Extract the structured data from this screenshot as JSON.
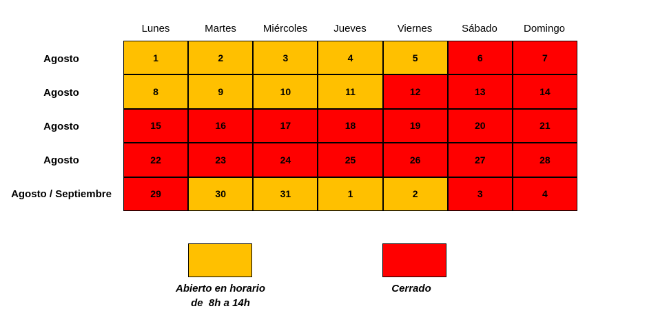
{
  "colors": {
    "open": "#ffc000",
    "closed": "#ff0000"
  },
  "days": [
    "Lunes",
    "Martes",
    "Miércoles",
    "Jueves",
    "Viernes",
    "Sábado",
    "Domingo"
  ],
  "rows": [
    {
      "label": "Agosto",
      "cells": [
        {
          "day": "1",
          "status": "open"
        },
        {
          "day": "2",
          "status": "open"
        },
        {
          "day": "3",
          "status": "open"
        },
        {
          "day": "4",
          "status": "open"
        },
        {
          "day": "5",
          "status": "open"
        },
        {
          "day": "6",
          "status": "closed"
        },
        {
          "day": "7",
          "status": "closed"
        }
      ]
    },
    {
      "label": "Agosto",
      "cells": [
        {
          "day": "8",
          "status": "open"
        },
        {
          "day": "9",
          "status": "open"
        },
        {
          "day": "10",
          "status": "open"
        },
        {
          "day": "11",
          "status": "open"
        },
        {
          "day": "12",
          "status": "closed"
        },
        {
          "day": "13",
          "status": "closed"
        },
        {
          "day": "14",
          "status": "closed"
        }
      ]
    },
    {
      "label": "Agosto",
      "cells": [
        {
          "day": "15",
          "status": "closed"
        },
        {
          "day": "16",
          "status": "closed"
        },
        {
          "day": "17",
          "status": "closed"
        },
        {
          "day": "18",
          "status": "closed"
        },
        {
          "day": "19",
          "status": "closed"
        },
        {
          "day": "20",
          "status": "closed"
        },
        {
          "day": "21",
          "status": "closed"
        }
      ]
    },
    {
      "label": "Agosto",
      "cells": [
        {
          "day": "22",
          "status": "closed"
        },
        {
          "day": "23",
          "status": "closed"
        },
        {
          "day": "24",
          "status": "closed"
        },
        {
          "day": "25",
          "status": "closed"
        },
        {
          "day": "26",
          "status": "closed"
        },
        {
          "day": "27",
          "status": "closed"
        },
        {
          "day": "28",
          "status": "closed"
        }
      ]
    },
    {
      "label": "Agosto / Septiembre",
      "cells": [
        {
          "day": "29",
          "status": "closed"
        },
        {
          "day": "30",
          "status": "open"
        },
        {
          "day": "31",
          "status": "open"
        },
        {
          "day": "1",
          "status": "open"
        },
        {
          "day": "2",
          "status": "open"
        },
        {
          "day": "3",
          "status": "closed"
        },
        {
          "day": "4",
          "status": "closed"
        }
      ]
    }
  ],
  "legend": {
    "open_line1": "Abierto en horario",
    "open_line2": "de  8h a 14h",
    "closed": "Cerrado"
  }
}
